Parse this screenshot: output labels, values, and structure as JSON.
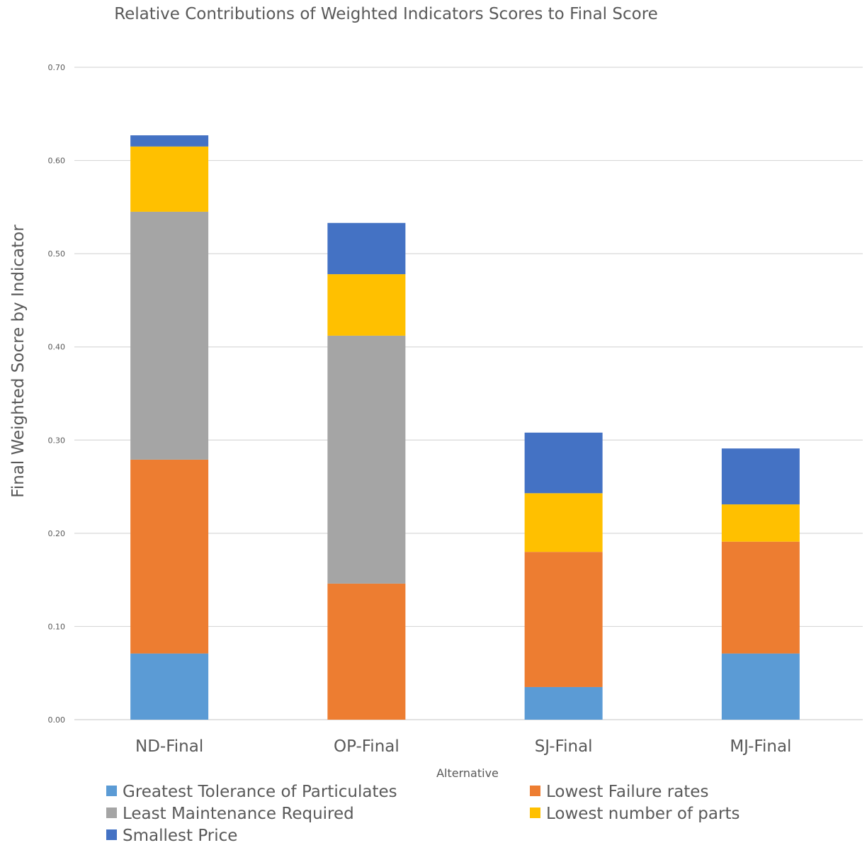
{
  "chart_data": {
    "type": "bar",
    "stacked": true,
    "title": "Relative Contributions of Weighted Indicators Scores to Final Score",
    "xlabel": "Alternative",
    "ylabel": "Final Weighted Socre by Indicator",
    "ylim": [
      0,
      0.7
    ],
    "yticks": [
      "0.00",
      "0.10",
      "0.20",
      "0.30",
      "0.40",
      "0.50",
      "0.60",
      "0.70"
    ],
    "grid": true,
    "legend_position": "bottom",
    "categories": [
      "ND-Final",
      "OP-Final",
      "SJ-Final",
      "MJ-Final"
    ],
    "series": [
      {
        "name": "Greatest Tolerance of Particulates",
        "color": "#5b9bd5",
        "values": [
          0.071,
          0.0,
          0.035,
          0.071
        ]
      },
      {
        "name": "Lowest Failure rates",
        "color": "#ed7d31",
        "values": [
          0.208,
          0.146,
          0.145,
          0.12
        ]
      },
      {
        "name": "Least Maintenance Required",
        "color": "#a5a5a5",
        "values": [
          0.266,
          0.266,
          0.0,
          0.0
        ]
      },
      {
        "name": "Lowest number of parts",
        "color": "#ffc000",
        "values": [
          0.07,
          0.066,
          0.063,
          0.04
        ]
      },
      {
        "name": "Smallest Price",
        "color": "#4472c4",
        "values": [
          0.012,
          0.055,
          0.065,
          0.06
        ]
      }
    ]
  }
}
